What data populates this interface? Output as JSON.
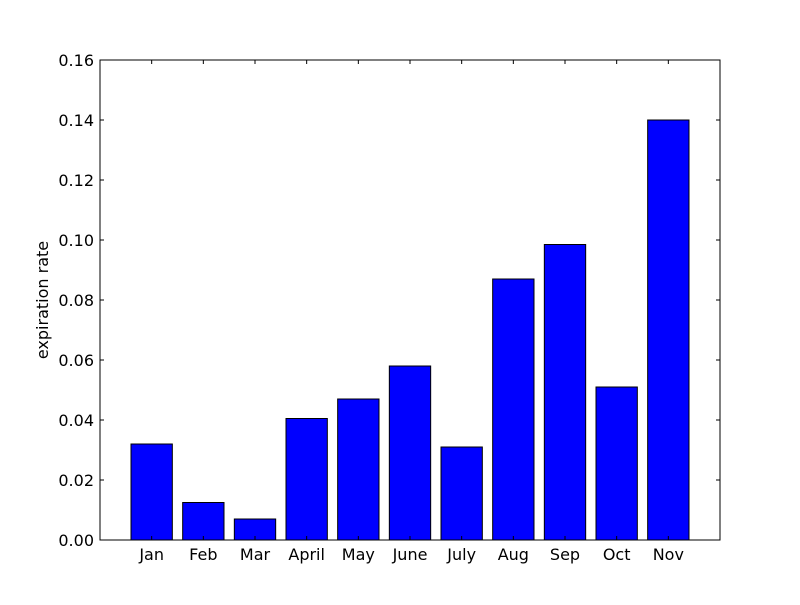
{
  "chart_data": {
    "type": "bar",
    "categories": [
      "Jan",
      "Feb",
      "Mar",
      "April",
      "May",
      "June",
      "July",
      "Aug",
      "Sep",
      "Oct",
      "Nov"
    ],
    "values": [
      0.032,
      0.0125,
      0.007,
      0.0405,
      0.047,
      0.058,
      0.031,
      0.087,
      0.0985,
      0.051,
      0.14
    ],
    "title": "",
    "xlabel": "",
    "ylabel": "expiration rate",
    "ylim": [
      0,
      0.16
    ],
    "yticks": [
      "0.00",
      "0.02",
      "0.04",
      "0.06",
      "0.08",
      "0.10",
      "0.12",
      "0.14",
      "0.16"
    ],
    "ytick_values": [
      0,
      0.02,
      0.04,
      0.06,
      0.08,
      0.1,
      0.12,
      0.14,
      0.16
    ],
    "grid": false,
    "legend": "none",
    "bar_color": "#0000ff",
    "edge_color": "#000000"
  }
}
